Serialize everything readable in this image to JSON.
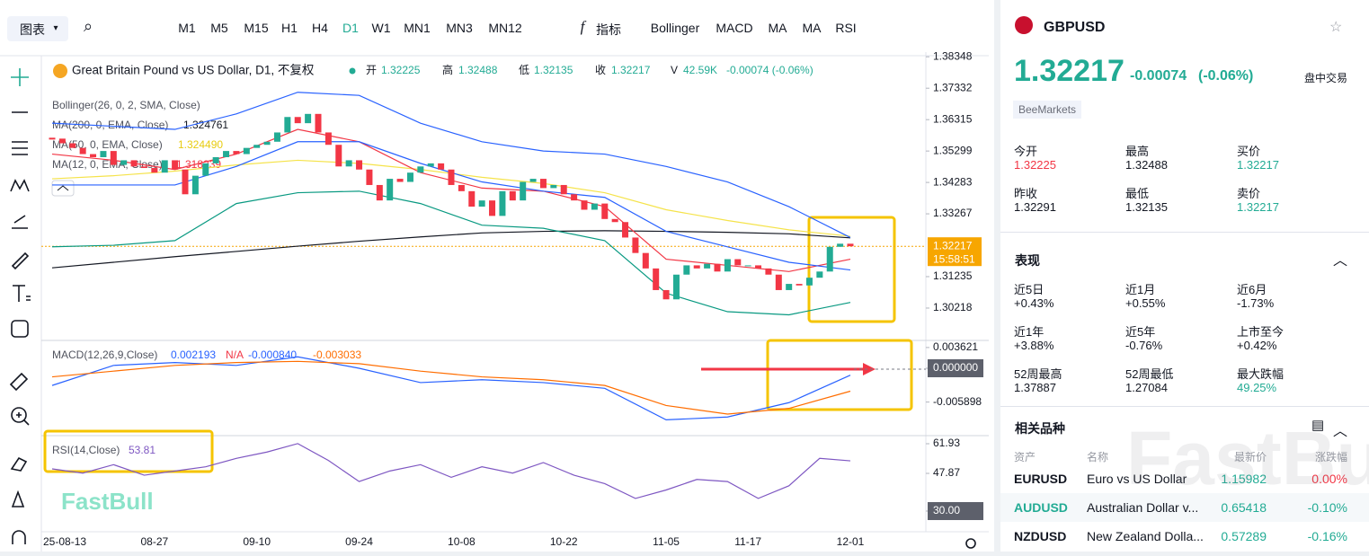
{
  "toolbar": {
    "chart_menu": "图表",
    "intervals": [
      "M1",
      "M5",
      "M15",
      "H1",
      "H4",
      "D1",
      "W1",
      "MN1",
      "MN3",
      "MN12"
    ],
    "active_interval": "D1",
    "indicators_menu": "指标",
    "indicators": [
      "Bollinger",
      "MACD",
      "MA",
      "MA",
      "RSI"
    ]
  },
  "chart": {
    "title": "Great Britain Pound vs US Dollar, D1, 不复权",
    "ohlc": [
      {
        "label": "开",
        "value": 1.32225
      },
      {
        "label": "高",
        "value": 1.32488
      },
      {
        "label": "低",
        "value": 1.32135
      },
      {
        "label": "收",
        "value": 1.32217
      }
    ],
    "volume": {
      "label": "V",
      "value": "42.59K"
    },
    "change": "-0.00074 (-0.06%)",
    "legends": [
      {
        "label": "Bollinger(26, 0, 2, SMA, Close)"
      },
      {
        "label": "MA(200, 0, EMA, Close)",
        "value": "1.324761",
        "color": "#131722"
      },
      {
        "label": "MA(50, 0, EMA, Close)",
        "value": "1.324490",
        "color": "#e8cc10"
      },
      {
        "label": "MA(12, 0, EMA, Close)",
        "value": "1.318239",
        "color": "#f23645"
      }
    ],
    "ylim": [
      1.292,
      1.385
    ],
    "yticks": [
      1.38348,
      1.37332,
      1.36315,
      1.35299,
      1.34283,
      1.33267,
      1.31235,
      1.30218
    ],
    "last_price": 1.32217,
    "countdown": "15:58:51",
    "categories": [
      "25-08-13",
      null,
      null,
      null,
      null,
      null,
      null,
      null,
      null,
      null,
      "08-27",
      null,
      null,
      null,
      null,
      null,
      null,
      null,
      null,
      null,
      "09-10",
      null,
      null,
      null,
      null,
      null,
      null,
      null,
      null,
      null,
      "09-24",
      null,
      null,
      null,
      null,
      null,
      null,
      null,
      null,
      null,
      "10-08",
      null,
      null,
      null,
      null,
      null,
      null,
      null,
      null,
      null,
      "10-22",
      null,
      null,
      null,
      null,
      null,
      null,
      null,
      null,
      null,
      "11-05",
      null,
      null,
      null,
      null,
      null,
      null,
      null,
      "11-17",
      null,
      null,
      null,
      null,
      null,
      null,
      null,
      null,
      null,
      "12-01"
    ],
    "closes": [
      1.357,
      1.3555,
      1.354,
      1.352,
      1.351,
      1.353,
      1.3485,
      1.35,
      1.348,
      1.3475,
      1.346,
      1.35,
      1.347,
      1.339,
      1.345,
      1.349,
      1.351,
      1.353,
      1.352,
      1.354,
      1.355,
      1.356,
      1.359,
      1.364,
      1.362,
      1.365,
      1.359,
      1.355,
      1.348,
      1.35,
      1.347,
      1.342,
      1.337,
      1.344,
      1.343,
      1.346,
      1.348,
      1.349,
      1.347,
      1.342,
      1.34,
      1.335,
      1.337,
      1.332,
      1.34,
      1.337,
      1.343,
      1.344,
      1.341,
      1.342,
      1.339,
      1.337,
      1.334,
      1.336,
      1.331,
      1.33,
      1.325,
      1.32,
      1.315,
      1.308,
      1.305,
      1.313,
      1.316,
      1.315,
      1.3165,
      1.314,
      1.318,
      1.316,
      1.316,
      1.315,
      1.313,
      1.308,
      1.31,
      1.3095,
      1.312,
      1.314,
      1.322,
      1.323,
      1.32217
    ],
    "up_color": "#22ab94",
    "down_color": "#f23645",
    "line_x": [
      0,
      6,
      12,
      18,
      24,
      30,
      36,
      42,
      48,
      54,
      60,
      66,
      72,
      78
    ],
    "lines": [
      {
        "color": "#131722",
        "values": [
          1.3152,
          1.317,
          1.3188,
          1.3205,
          1.3222,
          1.3238,
          1.3252,
          1.3265,
          1.327,
          1.3272,
          1.327,
          1.3267,
          1.3262,
          1.3249
        ]
      },
      {
        "color": "#f5e34a",
        "values": [
          1.344,
          1.345,
          1.3465,
          1.3485,
          1.35,
          1.349,
          1.347,
          1.3445,
          1.3425,
          1.3395,
          1.334,
          1.3305,
          1.3275,
          1.3254
        ]
      },
      {
        "color": "#f23645",
        "values": [
          1.352,
          1.35,
          1.347,
          1.352,
          1.36,
          1.356,
          1.346,
          1.341,
          1.34,
          1.335,
          1.318,
          1.316,
          1.314,
          1.318
        ]
      },
      {
        "color": "#2962ff",
        "values": [
          1.362,
          1.361,
          1.36,
          1.365,
          1.372,
          1.371,
          1.362,
          1.356,
          1.353,
          1.352,
          1.348,
          1.343,
          1.335,
          1.325
        ]
      },
      {
        "color": "#2962ff",
        "values": [
          1.342,
          1.342,
          1.342,
          1.348,
          1.356,
          1.356,
          1.349,
          1.343,
          1.34,
          1.338,
          1.327,
          1.322,
          1.317,
          1.3145
        ]
      },
      {
        "color": "#089981",
        "values": [
          1.322,
          1.3225,
          1.324,
          1.336,
          1.3395,
          1.34,
          1.336,
          1.329,
          1.328,
          1.324,
          1.307,
          1.301,
          1.3,
          1.304
        ]
      }
    ],
    "macd": {
      "legend": "MACD(12,26,9,Close)",
      "readings": [
        {
          "text": "0.002193",
          "color": "#2962ff"
        },
        {
          "text": "N/A",
          "color": "#f23645"
        },
        {
          "text": "-0.000840",
          "color": "#2962ff"
        },
        {
          "text": "-0.003033",
          "color": "#ff6d00"
        }
      ],
      "ylim": [
        -0.0116,
        0.0047
      ],
      "yticks": [
        0.003621,
        {
          "value": 0,
          "label": "0.000000"
        },
        -0.005898
      ],
      "lines": [
        {
          "color": "#2962ff",
          "values": [
            -0.003,
            0.0005,
            0.001,
            0.0005,
            0.002,
            0,
            -0.0025,
            -0.002,
            -0.0025,
            -0.0035,
            -0.009,
            -0.0085,
            -0.006,
            -0.0012
          ]
        },
        {
          "color": "#ff6d00",
          "values": [
            -0.0015,
            -0.0005,
            0.0005,
            0.001,
            0.0012,
            0.0008,
            -0.0005,
            -0.0015,
            -0.002,
            -0.003,
            -0.0065,
            -0.008,
            -0.007,
            -0.004
          ]
        }
      ]
    },
    "rsi": {
      "legend": "RSI(14,Close)",
      "reading": "53.81",
      "color": "#7e57c2",
      "ylim": [
        21.05,
        65.34
      ],
      "yticks": [
        61.93,
        47.87,
        {
          "value": 30,
          "label": "30.00"
        }
      ],
      "x": [
        0,
        3,
        6,
        9,
        12,
        15,
        18,
        21,
        24,
        27,
        30,
        33,
        36,
        39,
        42,
        45,
        48,
        51,
        54,
        57,
        60,
        63,
        66,
        69,
        72,
        75,
        78
      ],
      "values": [
        50,
        48,
        52,
        47,
        49,
        51,
        55,
        58,
        62,
        54,
        44,
        49,
        52,
        46,
        51,
        48,
        53,
        47,
        43,
        36,
        40,
        45,
        44,
        36,
        42,
        55,
        53.81
      ]
    }
  },
  "watermark": "FastBull",
  "quote": {
    "symbol": "GBPUSD",
    "price": 1.32217,
    "change": "-0.00074",
    "change_pct": "(-0.06%)",
    "status": "盘中交易",
    "broker": "BeeMarkets",
    "stats": [
      {
        "label": "今开",
        "value": 1.32225
      },
      {
        "label": "最高",
        "value": 1.32488
      },
      {
        "label": "买价",
        "value": 1.32217
      },
      {
        "label": "昨收",
        "value": 1.32291
      },
      {
        "label": "最低",
        "value": 1.32135
      },
      {
        "label": "卖价",
        "value": 1.32217
      }
    ]
  },
  "performance": {
    "title": "表现",
    "items": [
      {
        "label": "近5日",
        "value": "+0.43%"
      },
      {
        "label": "近1月",
        "value": "+0.55%"
      },
      {
        "label": "近6月",
        "value": "-1.73%"
      },
      {
        "label": "近1年",
        "value": "+3.88%"
      },
      {
        "label": "近5年",
        "value": "-0.76%"
      },
      {
        "label": "上市至今",
        "value": "+0.42%"
      },
      {
        "label": "52周最高",
        "value": "1.37887"
      },
      {
        "label": "52周最低",
        "value": "1.27084"
      },
      {
        "label": "最大跌幅",
        "value": "49.25%"
      }
    ]
  },
  "related": {
    "title": "相关品种",
    "header": [
      "资产",
      "名称",
      "最新价",
      "涨跌幅"
    ],
    "rows": [
      [
        "EURUSD",
        "Euro vs US Dollar",
        "1.15982",
        "0.00%"
      ],
      [
        "AUDUSD",
        "Australian Dollar v...",
        "0.65418",
        "-0.10%"
      ],
      [
        "NZDUSD",
        "New Zealand Dolla...",
        "0.57289",
        "-0.16%"
      ]
    ]
  }
}
